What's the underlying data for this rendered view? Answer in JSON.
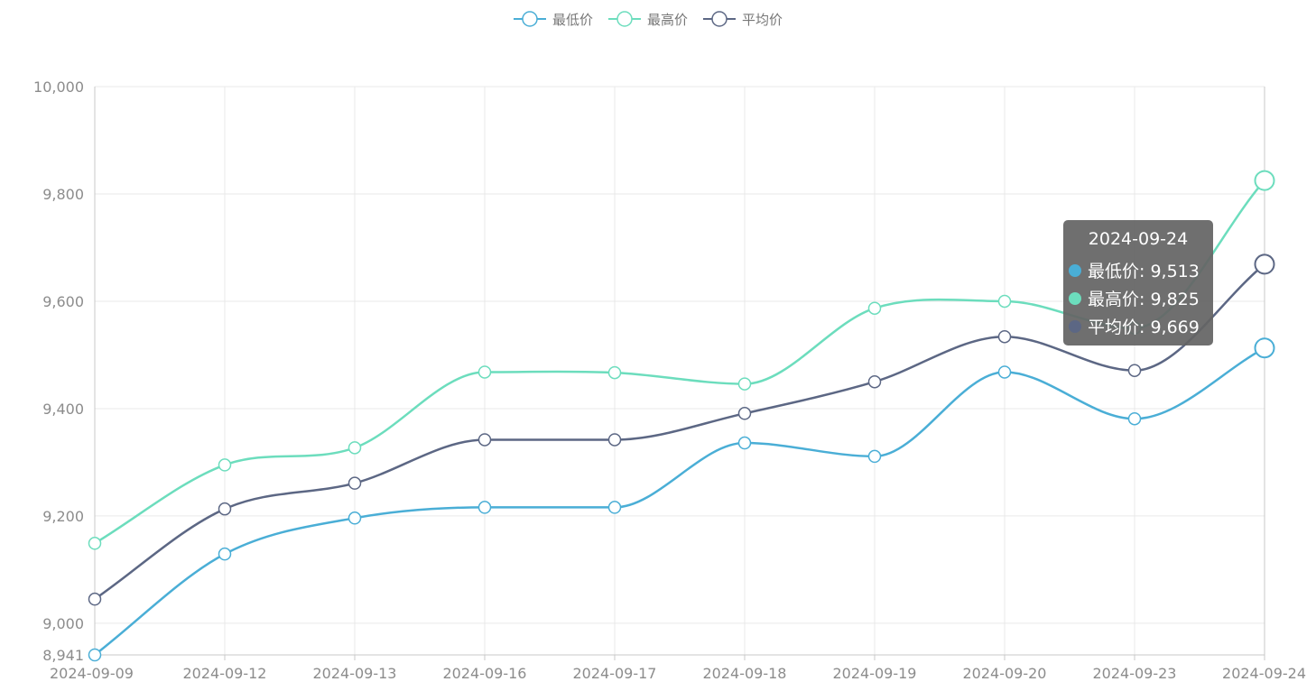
{
  "chart_data": {
    "type": "line",
    "title": "",
    "xlabel": "",
    "ylabel": "",
    "categories": [
      "2024-09-09",
      "2024-09-12",
      "2024-09-13",
      "2024-09-16",
      "2024-09-17",
      "2024-09-18",
      "2024-09-19",
      "2024-09-20",
      "2024-09-23",
      "2024-09-24"
    ],
    "ylim": [
      8941,
      10000
    ],
    "yticks": [
      "8,941",
      "9,000",
      "9,200",
      "9,400",
      "9,600",
      "9,800",
      "10,000"
    ],
    "smooth": true,
    "grid": true,
    "legend_position": "top-center",
    "series": [
      {
        "name": "最低价",
        "color": "#4aaed6",
        "values": [
          8941,
          9129,
          9196,
          9216,
          9216,
          9336,
          9311,
          9468,
          9381,
          9513
        ]
      },
      {
        "name": "最高价",
        "color": "#6cddbd",
        "values": [
          9149,
          9295,
          9327,
          9468,
          9467,
          9446,
          9587,
          9600,
          9550,
          9825
        ]
      },
      {
        "name": "平均价",
        "color": "#5c6784",
        "values": [
          9045,
          9213,
          9261,
          9342,
          9342,
          9391,
          9450,
          9534,
          9471,
          9669
        ]
      }
    ],
    "tooltip": {
      "title": "2024-09-24",
      "rows": [
        {
          "label": "最低价: 9,513",
          "color": "#4aaed6"
        },
        {
          "label": "最高价: 9,825",
          "color": "#6cddbd"
        },
        {
          "label": "平均价: 9,669",
          "color": "#5c6784"
        }
      ]
    }
  }
}
